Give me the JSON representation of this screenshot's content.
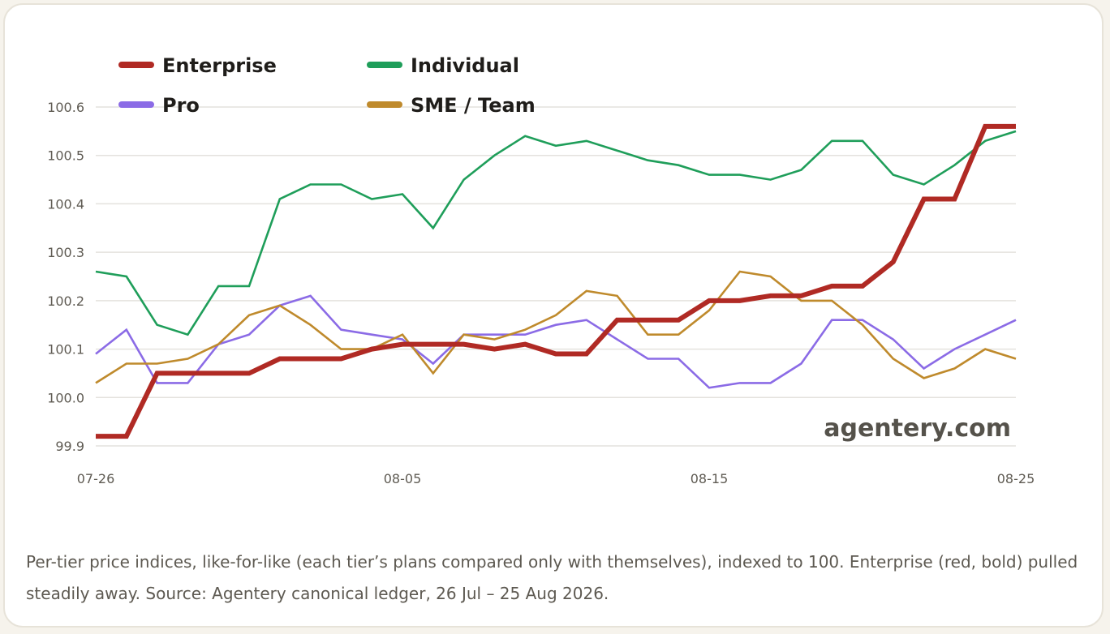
{
  "caption": "Per-tier price indices, like-for-like (each tier’s plans compared only with themselves), indexed to 100. Enterprise (red, bold) pulled steadily away. Source: Agentery canonical ledger, 26 Jul – 25 Aug 2026.",
  "watermark": "agentery.com",
  "chart_data": {
    "type": "line",
    "title": "",
    "xlabel": "",
    "ylabel": "",
    "grid": true,
    "legend_position": "top-left",
    "ylim": [
      99.9,
      100.6
    ],
    "yticks": [
      "99.9",
      "100.0",
      "100.1",
      "100.2",
      "100.3",
      "100.4",
      "100.5",
      "100.6"
    ],
    "xticks": [
      "07-26",
      "08-05",
      "08-15",
      "08-25"
    ],
    "x": [
      "07-26",
      "07-27",
      "07-28",
      "07-29",
      "07-30",
      "07-31",
      "08-01",
      "08-02",
      "08-03",
      "08-04",
      "08-05",
      "08-06",
      "08-07",
      "08-08",
      "08-09",
      "08-10",
      "08-11",
      "08-12",
      "08-13",
      "08-14",
      "08-15",
      "08-16",
      "08-17",
      "08-18",
      "08-19",
      "08-20",
      "08-21",
      "08-22",
      "08-23",
      "08-24",
      "08-25"
    ],
    "series": [
      {
        "name": "Enterprise",
        "color": "#b02a24",
        "bold": true,
        "values": [
          99.92,
          99.92,
          100.05,
          100.05,
          100.05,
          100.05,
          100.08,
          100.08,
          100.08,
          100.1,
          100.11,
          100.11,
          100.11,
          100.1,
          100.11,
          100.09,
          100.09,
          100.16,
          100.16,
          100.16,
          100.2,
          100.2,
          100.21,
          100.21,
          100.23,
          100.23,
          100.28,
          100.41,
          100.41,
          100.56,
          100.56
        ]
      },
      {
        "name": "Individual",
        "color": "#1f9e5a",
        "bold": false,
        "values": [
          100.26,
          100.25,
          100.15,
          100.13,
          100.23,
          100.23,
          100.41,
          100.44,
          100.44,
          100.41,
          100.42,
          100.35,
          100.45,
          100.5,
          100.54,
          100.52,
          100.53,
          100.51,
          100.49,
          100.48,
          100.46,
          100.46,
          100.45,
          100.47,
          100.53,
          100.53,
          100.46,
          100.44,
          100.48,
          100.53,
          100.55
        ]
      },
      {
        "name": "Pro",
        "color": "#8b6be6",
        "bold": false,
        "values": [
          100.09,
          100.14,
          100.03,
          100.03,
          100.11,
          100.13,
          100.19,
          100.21,
          100.14,
          100.13,
          100.12,
          100.07,
          100.13,
          100.13,
          100.13,
          100.15,
          100.16,
          100.12,
          100.08,
          100.08,
          100.02,
          100.03,
          100.03,
          100.07,
          100.16,
          100.16,
          100.12,
          100.06,
          100.1,
          100.13,
          100.16
        ]
      },
      {
        "name": "SME / Team",
        "color": "#bf8a2c",
        "bold": false,
        "values": [
          100.03,
          100.07,
          100.07,
          100.08,
          100.11,
          100.17,
          100.19,
          100.15,
          100.1,
          100.1,
          100.13,
          100.05,
          100.13,
          100.12,
          100.14,
          100.17,
          100.22,
          100.21,
          100.13,
          100.13,
          100.18,
          100.26,
          100.25,
          100.2,
          100.2,
          100.15,
          100.08,
          100.04,
          100.06,
          100.1,
          100.08
        ]
      }
    ]
  }
}
